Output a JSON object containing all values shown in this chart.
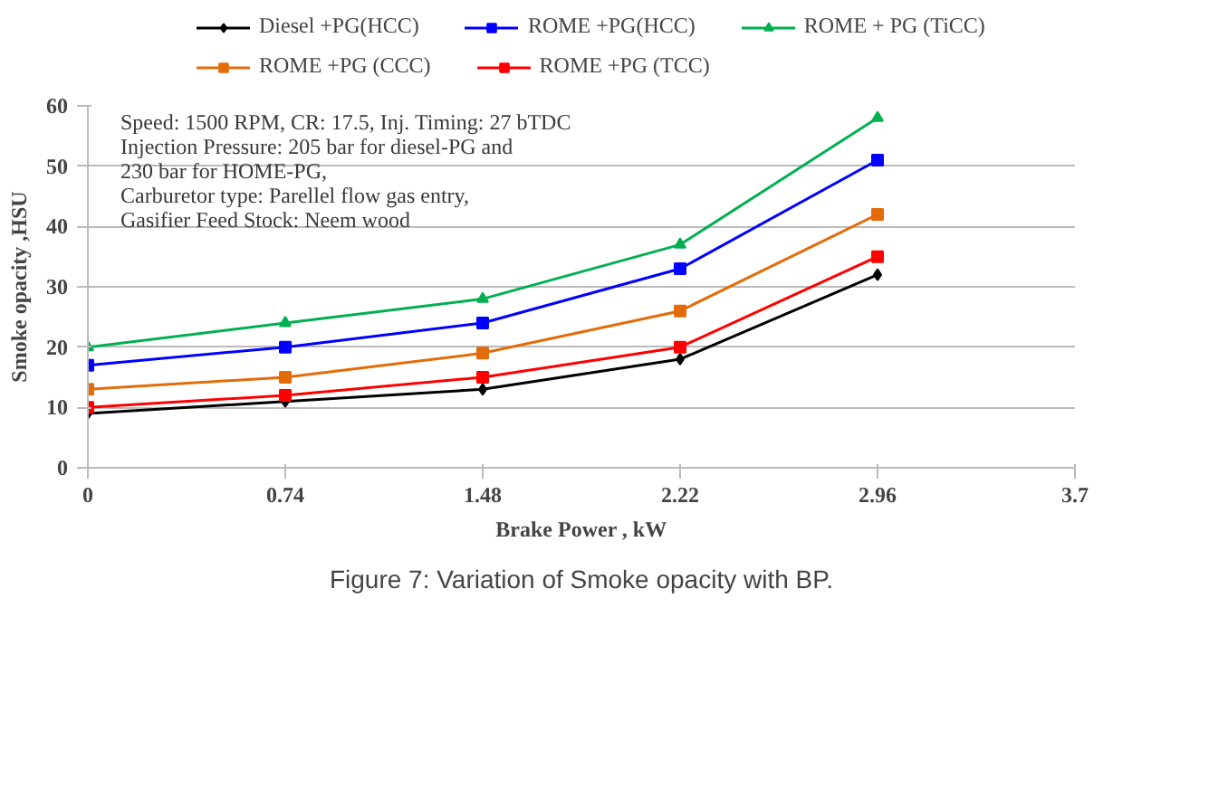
{
  "chart_data": {
    "type": "line",
    "title": "Figure 7: Variation of Smoke opacity with BP.",
    "xlabel": "Brake Power , kW",
    "ylabel": "Smoke opacity ,HSU",
    "x": [
      0,
      0.74,
      1.48,
      2.22,
      2.96
    ],
    "xlim": [
      0,
      3.7
    ],
    "xticks": [
      0,
      0.74,
      1.48,
      2.22,
      2.96,
      3.7
    ],
    "ylim": [
      0,
      60
    ],
    "yticks": [
      0,
      10,
      20,
      30,
      40,
      50,
      60
    ],
    "grid": "y",
    "legend": "top",
    "line_style": "solid",
    "annotations": [
      "Speed: 1500 RPM, CR: 17.5, Inj. Timing:  27 bTDC",
      "Injection Pressure: 205 bar for diesel-PG and",
      "230 bar for HOME-PG,",
      "Carburetor type: Parellel  flow gas entry,",
      "Gasifier Feed Stock: Neem wood"
    ],
    "series": [
      {
        "name": "Diesel +PG(HCC)",
        "color": "#000000",
        "marker": "diamond",
        "values": [
          9,
          11,
          13,
          18,
          32
        ]
      },
      {
        "name": "ROME +PG(HCC)",
        "color": "#0000ff",
        "marker": "square",
        "values": [
          17,
          20,
          24,
          33,
          51
        ]
      },
      {
        "name": "ROME + PG (TiCC)",
        "color": "#00b050",
        "marker": "triangle",
        "values": [
          20,
          24,
          28,
          37,
          58
        ]
      },
      {
        "name": "ROME +PG (CCC)",
        "color": "#e36c09",
        "marker": "square",
        "values": [
          13,
          15,
          19,
          26,
          42
        ]
      },
      {
        "name": "ROME +PG (TCC)",
        "color": "#ff0000",
        "marker": "square",
        "values": [
          10,
          12,
          15,
          20,
          35
        ]
      }
    ]
  }
}
